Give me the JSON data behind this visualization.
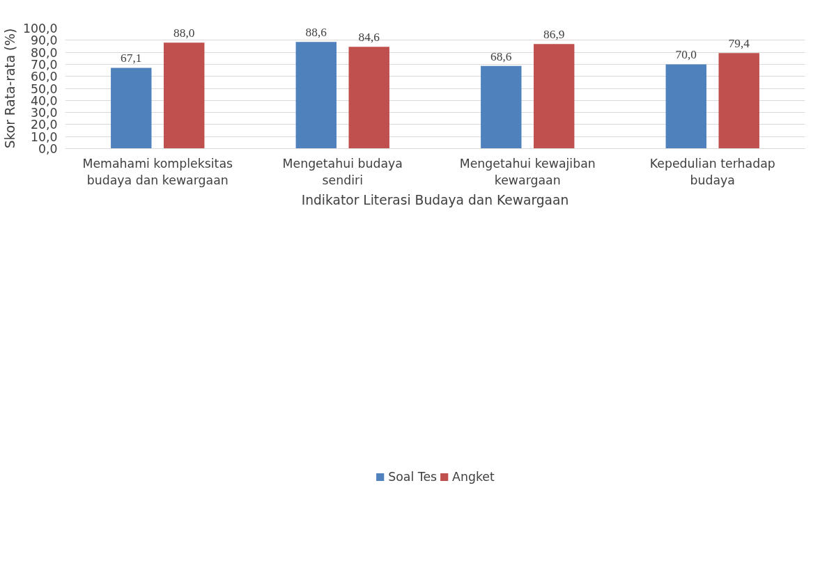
{
  "chart_data": {
    "type": "bar",
    "xlabel": "Indikator Literasi Budaya dan Kewargaan",
    "ylabel": "Skor Rata-rata (%)",
    "categories": [
      "Memahami kompleksitas\nbudaya dan kewargaan",
      "Mengetahui budaya\nsendiri",
      "Mengetahui kewajiban\nkewargaan",
      "Kepedulian terhadap\nbudaya"
    ],
    "series": [
      {
        "name": "Soal Tes",
        "color": "#4f81bd",
        "values": [
          67.1,
          88.6,
          68.6,
          70.0
        ],
        "value_labels": [
          "67,1",
          "88,6",
          "68,6",
          "70,0"
        ]
      },
      {
        "name": "Angket",
        "color": "#c0504d",
        "values": [
          88.0,
          84.6,
          86.9,
          79.4
        ],
        "value_labels": [
          "88,0",
          "84,6",
          "86,9",
          "79,4"
        ]
      }
    ],
    "ylim": [
      0,
      100
    ],
    "yticks": [
      {
        "value": 0,
        "label": "0,0"
      },
      {
        "value": 10,
        "label": "10,0"
      },
      {
        "value": 20,
        "label": "20,0"
      },
      {
        "value": 30,
        "label": "30,0"
      },
      {
        "value": 40,
        "label": "40,0"
      },
      {
        "value": 50,
        "label": "50,0"
      },
      {
        "value": 60,
        "label": "60,0"
      },
      {
        "value": 70,
        "label": "70,0"
      },
      {
        "value": 80,
        "label": "80,0"
      },
      {
        "value": 90,
        "label": "90,0"
      },
      {
        "value": 100,
        "label": "100,0"
      }
    ],
    "grid": "y",
    "legend": "bottom"
  }
}
